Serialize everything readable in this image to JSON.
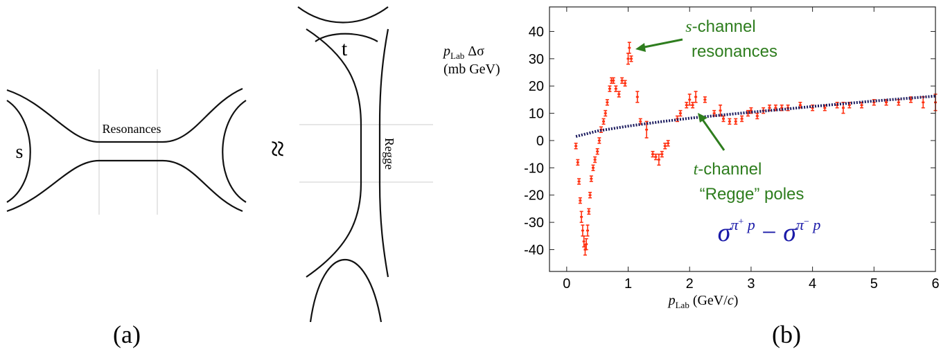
{
  "diagram": {
    "resonances": "Resonances",
    "s": "s",
    "t": "t",
    "regge": "Regge",
    "approx": "≈",
    "panel": "(a)"
  },
  "chart_data": {
    "type": "scatter",
    "panel": "(b)",
    "y_label": {
      "p": "p",
      "sub": "Lab",
      "rest": " Δσ",
      "unit": "(mb GeV)"
    },
    "x_label": {
      "p": "p",
      "sub": "Lab",
      "unit": " (GeV/",
      "c": "c",
      "close": ")"
    },
    "annotations": [
      {
        "italic": "s",
        "text": "-channel",
        "line2": "resonances",
        "color": "#2e7d1e"
      },
      {
        "italic": "t",
        "text": "-channel",
        "line2": "“Regge” poles",
        "color": "#2e7d1e"
      }
    ],
    "formula": {
      "s1": "σ",
      "pi1": "π",
      "c1": "+",
      "p1": " p",
      "minus": " − ",
      "s2": "σ",
      "pi2": "π",
      "c2": "−",
      "p2": " p",
      "color": "#1a1aa8"
    },
    "xlim": [
      -0.28,
      6
    ],
    "ylim": [
      -48,
      49
    ],
    "xticks": [
      0,
      1,
      2,
      3,
      4,
      5,
      6
    ],
    "yticks": [
      -40,
      -30,
      -20,
      -10,
      0,
      10,
      20,
      30,
      40
    ],
    "series": [
      {
        "style": "errorbar",
        "color": "#ff3010",
        "x": [
          0.15,
          0.18,
          0.2,
          0.22,
          0.24,
          0.26,
          0.28,
          0.3,
          0.32,
          0.34,
          0.36,
          0.38,
          0.4,
          0.43,
          0.46,
          0.5,
          0.53,
          0.56,
          0.6,
          0.63,
          0.66,
          0.7,
          0.73,
          0.76,
          0.8,
          0.85,
          0.9,
          0.95,
          1.0,
          1.02,
          1.05,
          1.15,
          1.2,
          1.3,
          1.4,
          1.45,
          1.5,
          1.55,
          1.6,
          1.65,
          1.8,
          1.85,
          1.95,
          2.0,
          2.05,
          2.1,
          2.25,
          2.4,
          2.5,
          2.55,
          2.65,
          2.75,
          2.85,
          2.95,
          3.0,
          3.1,
          3.2,
          3.3,
          3.4,
          3.5,
          3.6,
          3.8,
          4.0,
          4.2,
          4.4,
          4.5,
          4.6,
          4.8,
          5.0,
          5.2,
          5.4,
          5.6,
          5.8,
          6.0
        ],
        "values": [
          -2,
          -8,
          -15,
          -22,
          -28,
          -33,
          -37,
          -40,
          -38,
          -33,
          -26,
          -20,
          -14,
          -10,
          -7,
          -4,
          0,
          4,
          7,
          10,
          14,
          19,
          22,
          22,
          19,
          17,
          22,
          21,
          30,
          34,
          30,
          16,
          7,
          4,
          -5,
          -6,
          -7,
          -5,
          -2,
          -1,
          8,
          10,
          13,
          15,
          13,
          16,
          15,
          10,
          11,
          8,
          7,
          7,
          8,
          10,
          11,
          9,
          11,
          12,
          12,
          12,
          12,
          13,
          12,
          12,
          13,
          12,
          13,
          13,
          14,
          14,
          14,
          15,
          14,
          14
        ],
        "errors": [
          1,
          1,
          1,
          1,
          2,
          2,
          2,
          2,
          2,
          2,
          1,
          1,
          1,
          1,
          1,
          1,
          1,
          1,
          1,
          1,
          1,
          1,
          1,
          1,
          1,
          1,
          1,
          1,
          2,
          2,
          1,
          2,
          1,
          3,
          1,
          1,
          2,
          1,
          1,
          1,
          1,
          1,
          1,
          2,
          1,
          2,
          1,
          1,
          2,
          1,
          1,
          1,
          1,
          1,
          1,
          1,
          1,
          1,
          1,
          1,
          1,
          1,
          1,
          1,
          1,
          2,
          1,
          1,
          1,
          1,
          1,
          1,
          2,
          3
        ]
      },
      {
        "style": "dotted-line",
        "color": "#1a1a5e",
        "x": [
          0.15,
          0.5,
          1,
          1.5,
          2,
          2.5,
          3,
          3.5,
          4,
          4.5,
          5,
          5.5,
          6
        ],
        "values": [
          1.5,
          3.5,
          5.3,
          6.8,
          8.2,
          9.3,
          10.4,
          11.4,
          12.5,
          13.5,
          14.5,
          15.4,
          16.3
        ]
      }
    ]
  }
}
